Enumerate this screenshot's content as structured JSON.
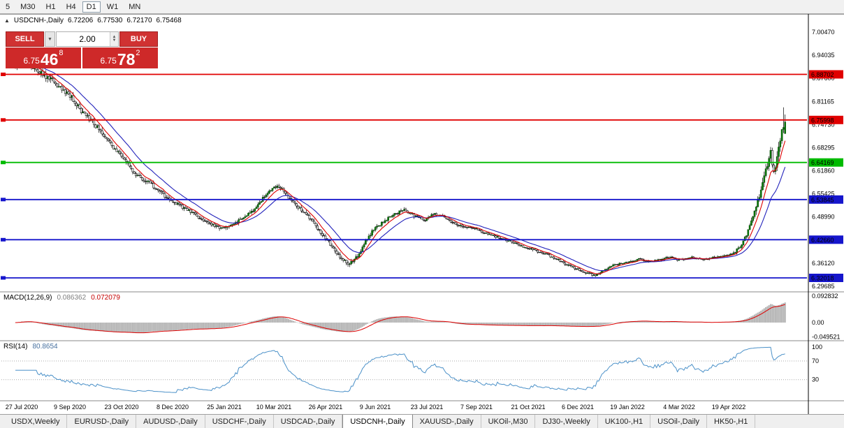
{
  "colors": {
    "bull": "#077807",
    "bull_stroke": "#033b03",
    "bear_fill": "#ffffff",
    "outline": "#000000",
    "ma_fast": "#dd0000",
    "ma_slow": "#2222bb",
    "histogram": "#b8b8b8",
    "signal": "#dd0000",
    "rsi_line": "#4a90c8"
  },
  "timeframe_toolbar": {
    "items": [
      "5",
      "M30",
      "H1",
      "H4",
      "D1",
      "W1",
      "MN"
    ],
    "active": "D1"
  },
  "chart_header": {
    "symbol": "USDCNH-,Daily",
    "open": "6.72206",
    "high": "6.77530",
    "low": "6.72170",
    "close": "6.75468"
  },
  "trade_panel": {
    "sell_label": "SELL",
    "buy_label": "BUY",
    "volume": "2.00",
    "bid": {
      "prefix": "6.75",
      "big": "46",
      "sup": "8"
    },
    "ask": {
      "prefix": "6.75",
      "big": "78",
      "sup": "2"
    }
  },
  "price_axis_labels": [
    "7.00470",
    "6.94035",
    "6.87600",
    "6.81165",
    "6.74730",
    "6.68295",
    "6.61860",
    "6.55425",
    "6.48990",
    "6.42555",
    "6.36120",
    "6.29685"
  ],
  "chart_data": {
    "type": "candlestick",
    "title": "USDCNH- Daily",
    "candle_count": 480,
    "trend_anchors": [
      [
        0,
        6.915
      ],
      [
        4,
        6.928
      ],
      [
        8,
        6.918
      ],
      [
        14,
        6.897
      ],
      [
        20,
        6.879
      ],
      [
        26,
        6.856
      ],
      [
        34,
        6.826
      ],
      [
        40,
        6.79
      ],
      [
        46,
        6.765
      ],
      [
        52,
        6.735
      ],
      [
        58,
        6.701
      ],
      [
        63,
        6.673
      ],
      [
        67,
        6.655
      ],
      [
        70,
        6.636
      ],
      [
        74,
        6.611
      ],
      [
        79,
        6.596
      ],
      [
        85,
        6.579
      ],
      [
        91,
        6.554
      ],
      [
        98,
        6.531
      ],
      [
        104,
        6.518
      ],
      [
        110,
        6.504
      ],
      [
        117,
        6.479
      ],
      [
        124,
        6.464
      ],
      [
        130,
        6.459
      ],
      [
        136,
        6.471
      ],
      [
        142,
        6.488
      ],
      [
        148,
        6.509
      ],
      [
        154,
        6.543
      ],
      [
        159,
        6.566
      ],
      [
        163,
        6.576
      ],
      [
        167,
        6.561
      ],
      [
        172,
        6.536
      ],
      [
        178,
        6.509
      ],
      [
        184,
        6.481
      ],
      [
        189,
        6.453
      ],
      [
        193,
        6.433
      ],
      [
        198,
        6.401
      ],
      [
        203,
        6.373
      ],
      [
        208,
        6.359
      ],
      [
        213,
        6.379
      ],
      [
        218,
        6.426
      ],
      [
        224,
        6.459
      ],
      [
        230,
        6.479
      ],
      [
        236,
        6.498
      ],
      [
        242,
        6.509
      ],
      [
        248,
        6.493
      ],
      [
        255,
        6.483
      ],
      [
        260,
        6.501
      ],
      [
        266,
        6.491
      ],
      [
        272,
        6.474
      ],
      [
        279,
        6.463
      ],
      [
        287,
        6.456
      ],
      [
        293,
        6.444
      ],
      [
        300,
        6.433
      ],
      [
        308,
        6.423
      ],
      [
        318,
        6.403
      ],
      [
        326,
        6.393
      ],
      [
        334,
        6.379
      ],
      [
        342,
        6.36
      ],
      [
        349,
        6.346
      ],
      [
        355,
        6.333
      ],
      [
        361,
        6.327
      ],
      [
        367,
        6.343
      ],
      [
        373,
        6.357
      ],
      [
        381,
        6.363
      ],
      [
        388,
        6.373
      ],
      [
        395,
        6.367
      ],
      [
        402,
        6.372
      ],
      [
        408,
        6.377
      ],
      [
        413,
        6.37
      ],
      [
        420,
        6.377
      ],
      [
        428,
        6.372
      ],
      [
        436,
        6.377
      ],
      [
        444,
        6.383
      ],
      [
        448,
        6.393
      ],
      [
        452,
        6.413
      ],
      [
        456,
        6.453
      ],
      [
        459,
        6.493
      ],
      [
        462,
        6.533
      ],
      [
        464,
        6.569
      ],
      [
        466,
        6.603
      ],
      [
        468,
        6.637
      ],
      [
        470,
        6.668
      ],
      [
        471,
        6.636
      ],
      [
        472,
        6.612
      ],
      [
        473,
        6.632
      ],
      [
        474,
        6.661
      ],
      [
        475,
        6.686
      ],
      [
        476,
        6.707
      ],
      [
        477,
        6.727
      ],
      [
        478,
        6.742
      ],
      [
        479,
        6.7547
      ]
    ],
    "volatility_anchors": [
      [
        0,
        0.024
      ],
      [
        30,
        0.02
      ],
      [
        70,
        0.016
      ],
      [
        130,
        0.013
      ],
      [
        165,
        0.013
      ],
      [
        210,
        0.014
      ],
      [
        260,
        0.01
      ],
      [
        320,
        0.009
      ],
      [
        380,
        0.0075
      ],
      [
        440,
        0.007
      ],
      [
        452,
        0.012
      ],
      [
        460,
        0.02
      ],
      [
        470,
        0.03
      ],
      [
        479,
        0.032
      ]
    ],
    "last_candle": {
      "open": 6.72206,
      "high": 6.7753,
      "low": 6.7217,
      "close": 6.75468
    },
    "pre_last_high": 6.795,
    "horizontal_levels": [
      {
        "price": 6.88702,
        "label": "6.88702",
        "color": "#e00000"
      },
      {
        "price": 6.75998,
        "label": "6.75998",
        "color": "#e00000"
      },
      {
        "price": 6.64169,
        "label": "6.64169",
        "color": "#00bb00"
      },
      {
        "price": 6.53845,
        "label": "6.53845",
        "color": "#1515cc"
      },
      {
        "price": 6.4266,
        "label": "6.42660",
        "color": "#1515cc"
      },
      {
        "price": 6.32018,
        "label": "6.32018",
        "color": "#1515cc"
      }
    ],
    "moving_averages": [
      {
        "name": "fast-ma",
        "period": 8,
        "color": "#dd0000"
      },
      {
        "name": "slow-ma",
        "period": 21,
        "color": "#2222bb"
      }
    ],
    "date_labels": [
      {
        "label": "27 Jul 2020",
        "index": 4
      },
      {
        "label": "9 Sep 2020",
        "index": 34
      },
      {
        "label": "23 Oct 2020",
        "index": 66
      },
      {
        "label": "8 Dec 2020",
        "index": 98
      },
      {
        "label": "25 Jan 2021",
        "index": 130
      },
      {
        "label": "10 Mar 2021",
        "index": 161
      },
      {
        "label": "26 Apr 2021",
        "index": 193
      },
      {
        "label": "9 Jun 2021",
        "index": 224
      },
      {
        "label": "23 Jul 2021",
        "index": 256
      },
      {
        "label": "7 Sep 2021",
        "index": 287
      },
      {
        "label": "21 Oct 2021",
        "index": 319
      },
      {
        "label": "6 Dec 2021",
        "index": 350
      },
      {
        "label": "19 Jan 2022",
        "index": 381
      },
      {
        "label": "4 Mar 2022",
        "index": 413
      },
      {
        "label": "19 Apr 2022",
        "index": 444
      }
    ]
  },
  "macd_panel": {
    "title": "MACD(12,26,9)",
    "value": "0.086362",
    "signal_value": "0.072079",
    "axis_labels": [
      {
        "v": 0.092832,
        "t": "0.092832"
      },
      {
        "v": 0,
        "t": "0.00"
      },
      {
        "v": -0.049521,
        "t": "-0.049521"
      }
    ]
  },
  "rsi_panel": {
    "title": "RSI(14)",
    "value": "80.8654",
    "axis_labels": [
      {
        "v": 100,
        "t": "100"
      },
      {
        "v": 70,
        "t": "70"
      },
      {
        "v": 30,
        "t": "30"
      }
    ],
    "levels": [
      70,
      30
    ]
  },
  "tab_bar": {
    "items": [
      "USDX,Weekly",
      "EURUSD-,Daily",
      "AUDUSD-,Daily",
      "USDCHF-,Daily",
      "USDCAD-,Daily",
      "USDCNH-,Daily",
      "XAUUSD-,Daily",
      "UKOil-,M30",
      "DJ30-,Weekly",
      "UK100-,H1",
      "USOil-,Daily",
      "HK50-,H1"
    ],
    "active": "USDCNH-,Daily"
  }
}
